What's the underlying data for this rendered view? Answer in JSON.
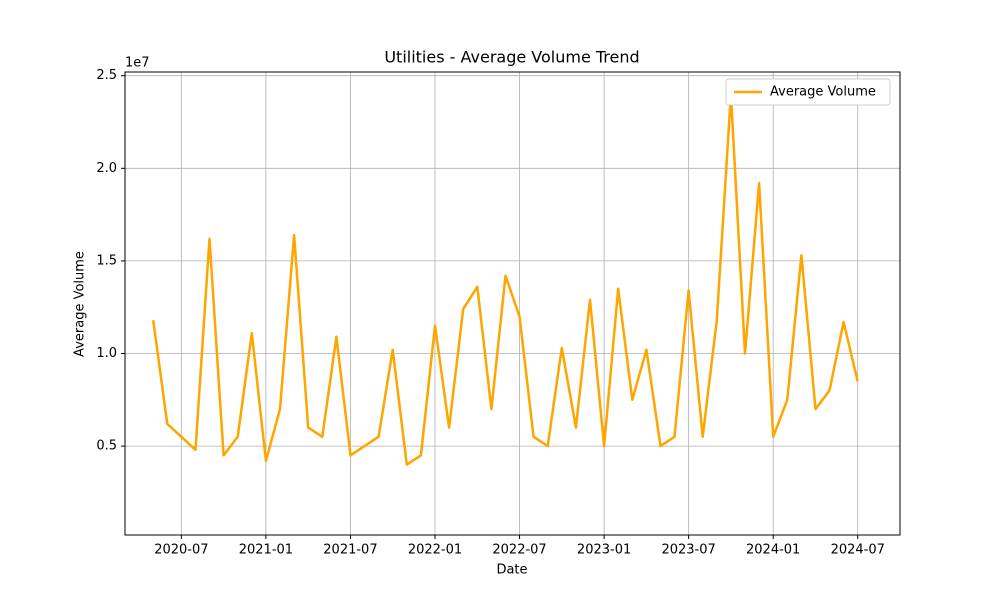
{
  "chart_data": {
    "type": "line",
    "title": "Utilities - Average Volume Trend",
    "xlabel": "Date",
    "ylabel": "Average Volume",
    "y_offset_label": "1e7",
    "x": [
      "2020-05",
      "2020-06",
      "2020-07",
      "2020-08",
      "2020-09",
      "2020-10",
      "2020-11",
      "2020-12",
      "2021-01",
      "2021-02",
      "2021-03",
      "2021-04",
      "2021-05",
      "2021-06",
      "2021-07",
      "2021-08",
      "2021-09",
      "2021-10",
      "2021-11",
      "2021-12",
      "2022-01",
      "2022-02",
      "2022-03",
      "2022-04",
      "2022-05",
      "2022-06",
      "2022-07",
      "2022-08",
      "2022-09",
      "2022-10",
      "2022-11",
      "2022-12",
      "2023-01",
      "2023-02",
      "2023-03",
      "2023-04",
      "2023-05",
      "2023-06",
      "2023-07",
      "2023-08",
      "2023-09",
      "2023-10",
      "2023-11",
      "2023-12",
      "2024-01",
      "2024-02",
      "2024-03",
      "2024-04",
      "2024-05",
      "2024-06",
      "2024-07"
    ],
    "series": [
      {
        "name": "Average Volume",
        "color": "orange",
        "values": [
          1.18,
          0.62,
          0.55,
          0.48,
          1.62,
          0.45,
          0.55,
          1.11,
          0.42,
          0.7,
          1.64,
          0.6,
          0.55,
          1.09,
          0.45,
          0.5,
          0.55,
          1.02,
          0.4,
          0.45,
          1.15,
          0.6,
          1.24,
          1.36,
          0.7,
          1.42,
          1.2,
          0.55,
          0.5,
          1.03,
          0.6,
          1.29,
          0.5,
          1.35,
          0.75,
          1.02,
          0.5,
          0.55,
          1.34,
          0.55,
          1.18,
          2.4,
          1.0,
          1.92,
          0.55,
          0.75,
          1.53,
          0.7,
          0.8,
          1.17,
          0.85
        ]
      }
    ],
    "xlim": [
      "2020-03",
      "2024-10"
    ],
    "xticks": [
      "2020-07",
      "2021-01",
      "2021-07",
      "2022-01",
      "2022-07",
      "2023-01",
      "2023-07",
      "2024-01",
      "2024-07"
    ],
    "ylim": [
      0.02,
      2.52
    ],
    "yticks": [
      0.5,
      {
        "value": 1,
        "label": "1.0"
      },
      1.5,
      {
        "value": 2,
        "label": "2.0"
      },
      2.5
    ],
    "grid": true,
    "legend": "upper right"
  }
}
